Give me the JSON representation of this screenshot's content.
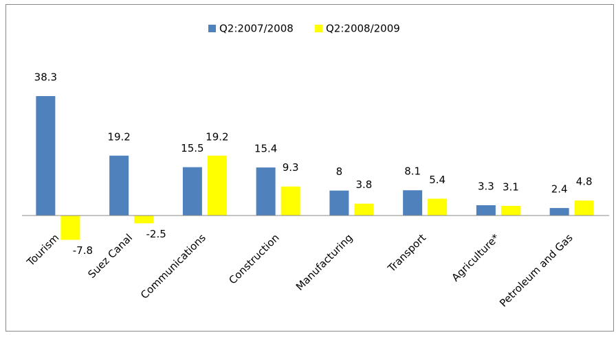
{
  "chart_data": {
    "type": "bar",
    "categories": [
      "Tourism",
      "Suez Canal",
      "Communications",
      "Construction",
      "Manufacturing",
      "Transport",
      "Agriculture*",
      "Petroleum and Gas"
    ],
    "series": [
      {
        "name": "Q2:2007/2008",
        "color": "#4f81bd",
        "values": [
          38.3,
          19.2,
          15.5,
          15.4,
          8,
          8.1,
          3.3,
          2.4
        ]
      },
      {
        "name": "Q2:2008/2009",
        "color": "#ffff00",
        "values": [
          -7.8,
          -2.5,
          19.2,
          9.3,
          3.8,
          5.4,
          3.1,
          4.8
        ]
      }
    ],
    "legend": "top",
    "data_labels": true
  }
}
